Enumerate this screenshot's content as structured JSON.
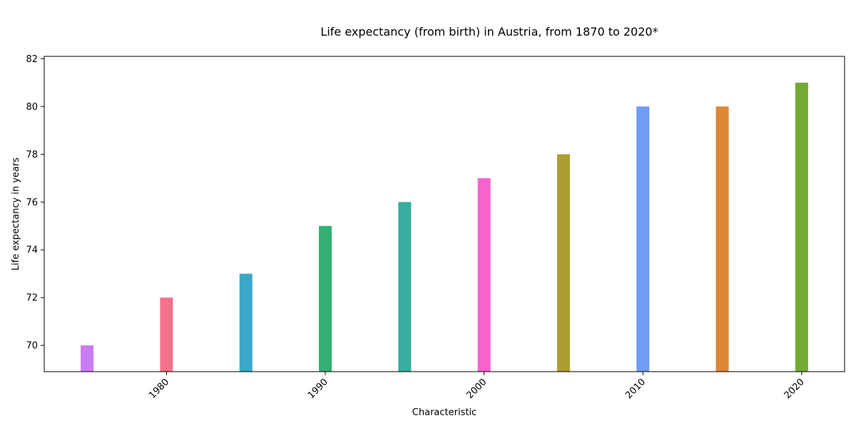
{
  "chart_data": {
    "type": "bar",
    "title": "Life expectancy (from birth) in Austria, from 1870 to 2020*",
    "xlabel": "Characteristic",
    "ylabel": "Life expectancy in years",
    "x": [
      1975,
      1980,
      1985,
      1990,
      1995,
      2000,
      2005,
      2010,
      2015,
      2020
    ],
    "values": [
      70,
      72,
      73,
      75,
      76,
      77,
      78,
      80,
      80,
      81
    ],
    "colors": [
      "#c97df2",
      "#f5718a",
      "#3aa9c9",
      "#34af76",
      "#37ae9f",
      "#f563cb",
      "#ac9e32",
      "#6f9cf4",
      "#dc8733",
      "#73aa35"
    ],
    "x_ticks": [
      1980,
      1990,
      2000,
      2010,
      2020
    ],
    "xlim": [
      1972.3,
      2022.7
    ],
    "y_ticks": [
      70,
      72,
      74,
      76,
      78,
      80,
      82
    ],
    "ylim": [
      68.9,
      82.1
    ],
    "grid": false,
    "legend": "none"
  }
}
